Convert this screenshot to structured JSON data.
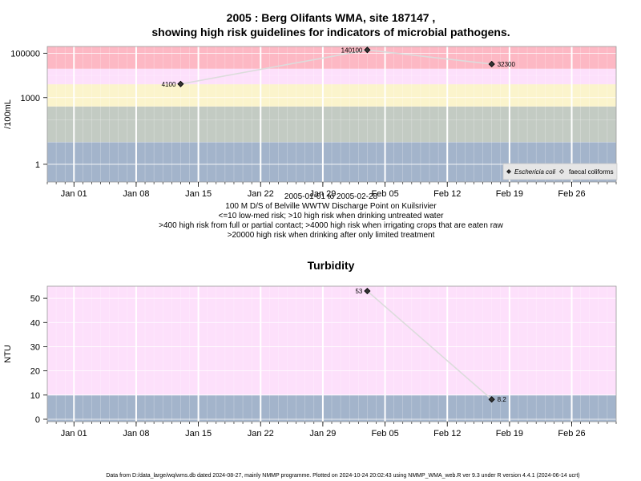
{
  "page": {
    "title_line1": "2005 : Berg Olifants WMA, site 187147 ,",
    "title_line2": "showing high risk guidelines for indicators of microbial pathogens.",
    "footer": "Data from D:/data_large/wq/wms.db dated 2024-08-27, mainly NMMP programme. Plotted on 2024-10-24 20:02:43 using NMMP_WMA_web.R ver 9.3 under R version 4.4.1 (2024-06-14 ucrt)"
  },
  "chart_data": [
    {
      "type": "scatter",
      "title": "",
      "ylabel": "/100mL",
      "y_scale": "log",
      "ylim": [
        0.16,
        200000
      ],
      "yticks": [
        1,
        1000,
        100000
      ],
      "ytick_labels": [
        "1",
        "1000",
        "100000"
      ],
      "x_range": [
        "2004-12-29",
        "2005-03-03"
      ],
      "x_ticks": [
        "2005-01-01",
        "2005-01-08",
        "2005-01-15",
        "2005-01-22",
        "2005-01-29",
        "2005-02-05",
        "2005-02-12",
        "2005-02-19",
        "2005-02-26"
      ],
      "x_tick_labels": [
        "Jan 01",
        "Jan 08",
        "Jan 15",
        "Jan 22",
        "Jan 29",
        "Feb 05",
        "Feb 12",
        "Feb 19",
        "Feb 26"
      ],
      "bands": [
        {
          "from": 0.16,
          "to": 10,
          "color": "#a3b4cb"
        },
        {
          "from": 10,
          "to": 400,
          "color": "#c3cbc3"
        },
        {
          "from": 400,
          "to": 4000,
          "color": "#fbf4cc"
        },
        {
          "from": 4000,
          "to": 20000,
          "color": "#fde0fb"
        },
        {
          "from": 20000,
          "to": 200000,
          "color": "#fdb8c4"
        }
      ],
      "series": [
        {
          "name": "Eschericia coli",
          "marker": "filled-diamond",
          "x": [
            "2005-01-13",
            "2005-02-03",
            "2005-02-17"
          ],
          "values": [
            4100,
            140100,
            32300
          ],
          "labels": [
            "4100",
            "140100",
            "32300"
          ]
        },
        {
          "name": "faecal coliforms",
          "marker": "open-diamond",
          "x": [],
          "values": []
        }
      ],
      "legend": {
        "placement": "bottom-right",
        "entries": [
          "Eschericia coli",
          "faecal coliforms"
        ]
      },
      "captions": [
        "2005-01-01 to 2005-02-28",
        "100 M D/S of Belville WWTW Discharge Point on Kuilsrivier",
        "<=10 low-med risk; >10 high risk when drinking untreated water",
        ">400 high risk from full or partial contact; >4000 high risk when irrigating crops that are eaten raw",
        ">20000 high risk when drinking after only limited treatment"
      ]
    },
    {
      "type": "scatter",
      "title": "Turbidity",
      "ylabel": "NTU",
      "y_scale": "linear",
      "ylim": [
        -1,
        55
      ],
      "yticks": [
        0,
        10,
        20,
        30,
        40,
        50
      ],
      "ytick_labels": [
        "0",
        "10",
        "20",
        "30",
        "40",
        "50"
      ],
      "x_range": [
        "2004-12-29",
        "2005-03-03"
      ],
      "x_ticks": [
        "2005-01-01",
        "2005-01-08",
        "2005-01-15",
        "2005-01-22",
        "2005-01-29",
        "2005-02-05",
        "2005-02-12",
        "2005-02-19",
        "2005-02-26"
      ],
      "x_tick_labels": [
        "Jan 01",
        "Jan 08",
        "Jan 15",
        "Jan 22",
        "Jan 29",
        "Feb 05",
        "Feb 12",
        "Feb 19",
        "Feb 26"
      ],
      "bands": [
        {
          "from": -1,
          "to": 10,
          "color": "#a3b4cb"
        },
        {
          "from": 10,
          "to": 55,
          "color": "#fde0fb"
        }
      ],
      "series": [
        {
          "marker": "filled-diamond",
          "x": [
            "2005-02-03",
            "2005-02-17"
          ],
          "values": [
            53,
            8.2
          ],
          "labels": [
            "53",
            "8.2"
          ]
        }
      ]
    }
  ]
}
